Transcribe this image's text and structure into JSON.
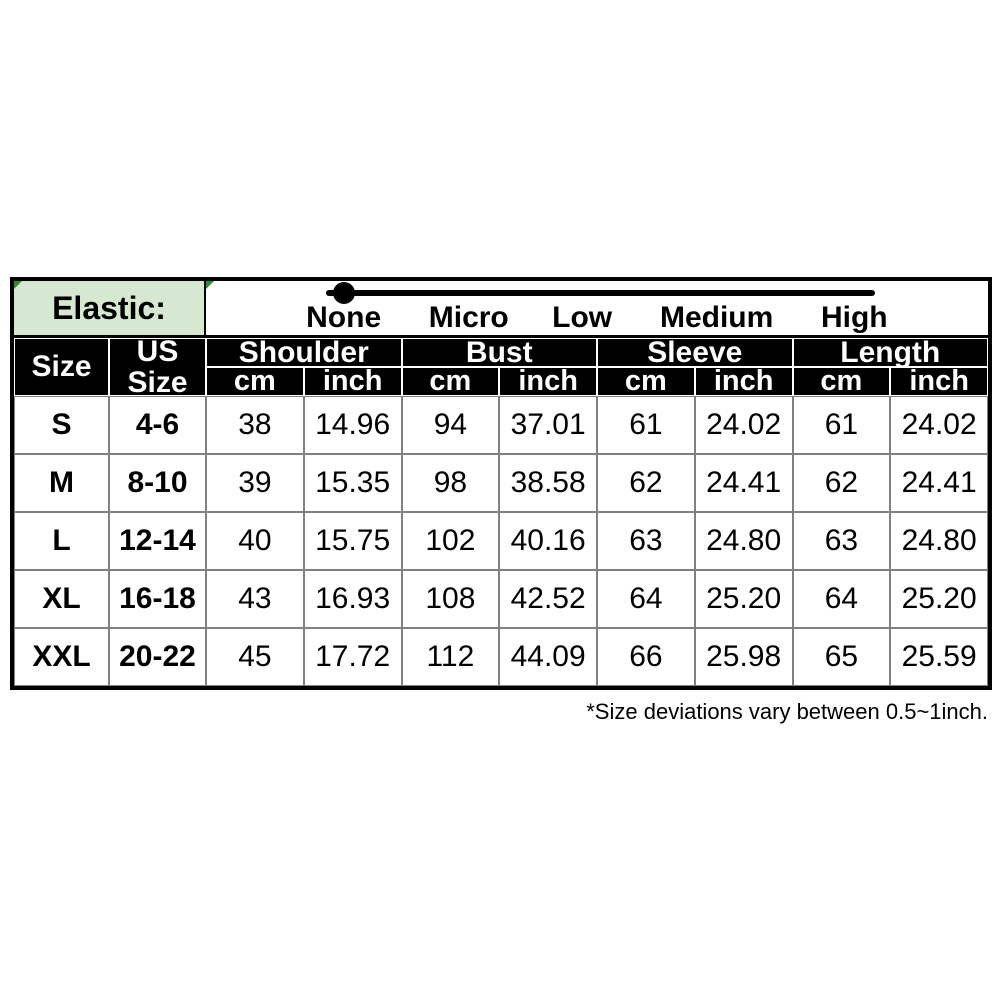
{
  "colors": {
    "elastic_cell_bg": "#d6e8d2",
    "header_bg": "#000000",
    "header_text": "#ffffff",
    "grid_line": "#808080",
    "corner_marker_green": "#2e8b2e",
    "slider_color": "#000000"
  },
  "elastic": {
    "label": "Elastic:",
    "levels": [
      "None",
      "Micro",
      "Low",
      "Medium",
      "High"
    ],
    "selected": "None"
  },
  "size_chart": {
    "size_header": "Size",
    "us_size_header": "US\nSize",
    "groups": [
      "Shoulder",
      "Bust",
      "Sleeve",
      "Length"
    ],
    "units": [
      "cm",
      "inch",
      "cm",
      "inch",
      "cm",
      "inch",
      "cm",
      "inch"
    ],
    "rows": [
      {
        "size": "S",
        "us_size": "4-6",
        "values": [
          "38",
          "14.96",
          "94",
          "37.01",
          "61",
          "24.02",
          "61",
          "24.02"
        ]
      },
      {
        "size": "M",
        "us_size": "8-10",
        "values": [
          "39",
          "15.35",
          "98",
          "38.58",
          "62",
          "24.41",
          "62",
          "24.41"
        ]
      },
      {
        "size": "L",
        "us_size": "12-14",
        "values": [
          "40",
          "15.75",
          "102",
          "40.16",
          "63",
          "24.80",
          "63",
          "24.80"
        ]
      },
      {
        "size": "XL",
        "us_size": "16-18",
        "values": [
          "43",
          "16.93",
          "108",
          "42.52",
          "64",
          "25.20",
          "64",
          "25.20"
        ]
      },
      {
        "size": "XXL",
        "us_size": "20-22",
        "values": [
          "45",
          "17.72",
          "112",
          "44.09",
          "66",
          "25.98",
          "65",
          "25.59"
        ]
      }
    ]
  },
  "footnote": "*Size deviations vary between 0.5~1inch.",
  "chart_data": {
    "type": "table",
    "columns": [
      "Size",
      "US Size",
      "Shoulder cm",
      "Shoulder inch",
      "Bust cm",
      "Bust inch",
      "Sleeve cm",
      "Sleeve inch",
      "Length cm",
      "Length inch"
    ],
    "rows": [
      [
        "S",
        "4-6",
        38,
        14.96,
        94,
        37.01,
        61,
        24.02,
        61,
        24.02
      ],
      [
        "M",
        "8-10",
        39,
        15.35,
        98,
        38.58,
        62,
        24.41,
        62,
        24.41
      ],
      [
        "L",
        "12-14",
        40,
        15.75,
        102,
        40.16,
        63,
        24.8,
        63,
        24.8
      ],
      [
        "XL",
        "16-18",
        43,
        16.93,
        108,
        42.52,
        64,
        25.2,
        64,
        25.2
      ],
      [
        "XXL",
        "20-22",
        45,
        17.72,
        112,
        44.09,
        66,
        25.98,
        65,
        25.59
      ]
    ],
    "annotations": [
      "Elastic level indicator: dot positioned at None (scale None–Micro–Low–Medium–High)",
      "*Size deviations vary between 0.5~1inch."
    ]
  }
}
